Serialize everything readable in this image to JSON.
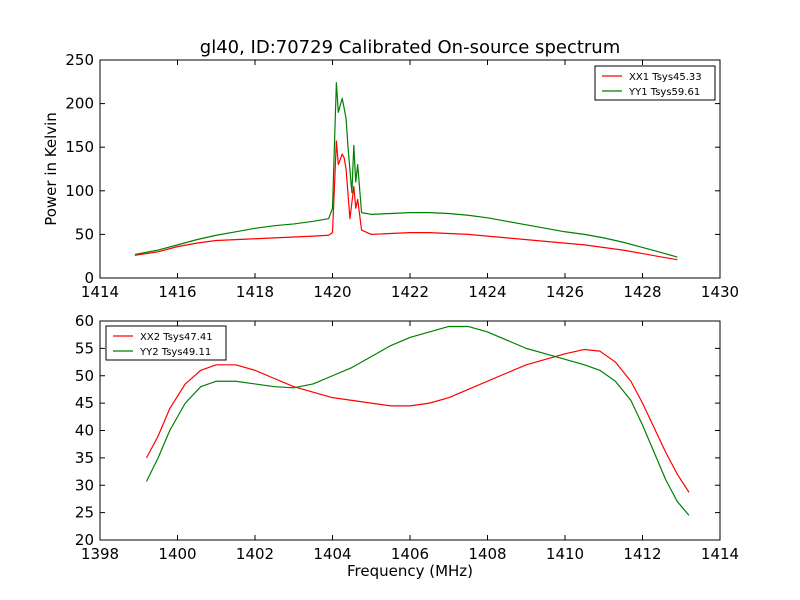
{
  "title": "gl40, ID:70729 Calibrated On-source spectrum",
  "colors": {
    "red": "#ff0000",
    "green": "#008000"
  },
  "chart_data": [
    {
      "type": "line",
      "title": "gl40, ID:70729 Calibrated On-source spectrum",
      "xlabel": "",
      "ylabel": "Power in Kelvin",
      "xlim": [
        1414,
        1430
      ],
      "ylim": [
        0,
        250
      ],
      "xticks": [
        1414,
        1416,
        1418,
        1420,
        1422,
        1424,
        1426,
        1428,
        1430
      ],
      "yticks": [
        0,
        50,
        100,
        150,
        200,
        250
      ],
      "legend": "top-right",
      "grid": false,
      "series": [
        {
          "name": "XX1 Tsys45.33",
          "color": "#ff0000",
          "points": [
            [
              1414.9,
              26
            ],
            [
              1415.5,
              30
            ],
            [
              1416,
              36
            ],
            [
              1416.5,
              40
            ],
            [
              1417,
              43
            ],
            [
              1417.5,
              44
            ],
            [
              1418,
              45
            ],
            [
              1418.5,
              46
            ],
            [
              1419,
              47
            ],
            [
              1419.5,
              48
            ],
            [
              1419.9,
              49
            ],
            [
              1420.0,
              52
            ],
            [
              1420.1,
              157
            ],
            [
              1420.15,
              130
            ],
            [
              1420.25,
              142
            ],
            [
              1420.3,
              138
            ],
            [
              1420.35,
              125
            ],
            [
              1420.45,
              68
            ],
            [
              1420.55,
              105
            ],
            [
              1420.6,
              80
            ],
            [
              1420.65,
              90
            ],
            [
              1420.75,
              55
            ],
            [
              1421,
              50
            ],
            [
              1421.5,
              51
            ],
            [
              1422,
              52
            ],
            [
              1422.5,
              52
            ],
            [
              1423,
              51
            ],
            [
              1423.5,
              50
            ],
            [
              1424,
              48
            ],
            [
              1424.5,
              46
            ],
            [
              1425,
              44
            ],
            [
              1425.5,
              42
            ],
            [
              1426,
              40
            ],
            [
              1426.5,
              38
            ],
            [
              1427,
              35
            ],
            [
              1427.5,
              32
            ],
            [
              1428,
              28
            ],
            [
              1428.5,
              24
            ],
            [
              1428.9,
              21
            ]
          ]
        },
        {
          "name": "YY1 Tsys59.61",
          "color": "#008000",
          "points": [
            [
              1414.9,
              27
            ],
            [
              1415.5,
              32
            ],
            [
              1416,
              38
            ],
            [
              1416.5,
              44
            ],
            [
              1417,
              49
            ],
            [
              1417.5,
              53
            ],
            [
              1418,
              57
            ],
            [
              1418.5,
              60
            ],
            [
              1419,
              62
            ],
            [
              1419.5,
              65
            ],
            [
              1419.9,
              68
            ],
            [
              1420.0,
              80
            ],
            [
              1420.1,
              224
            ],
            [
              1420.15,
              190
            ],
            [
              1420.25,
              206
            ],
            [
              1420.3,
              195
            ],
            [
              1420.35,
              183
            ],
            [
              1420.4,
              150
            ],
            [
              1420.5,
              98
            ],
            [
              1420.55,
              152
            ],
            [
              1420.6,
              110
            ],
            [
              1420.65,
              130
            ],
            [
              1420.75,
              75
            ],
            [
              1421,
              73
            ],
            [
              1421.5,
              74
            ],
            [
              1422,
              75
            ],
            [
              1422.5,
              75
            ],
            [
              1423,
              74
            ],
            [
              1423.5,
              72
            ],
            [
              1424,
              69
            ],
            [
              1424.5,
              65
            ],
            [
              1425,
              61
            ],
            [
              1425.5,
              57
            ],
            [
              1426,
              53
            ],
            [
              1426.5,
              50
            ],
            [
              1427,
              46
            ],
            [
              1427.5,
              41
            ],
            [
              1428,
              35
            ],
            [
              1428.5,
              29
            ],
            [
              1428.9,
              24
            ]
          ]
        }
      ]
    },
    {
      "type": "line",
      "title": "",
      "xlabel": "Frequency (MHz)",
      "ylabel": "",
      "xlim": [
        1398,
        1414
      ],
      "ylim": [
        20,
        60
      ],
      "xticks": [
        1398,
        1400,
        1402,
        1404,
        1406,
        1408,
        1410,
        1412,
        1414
      ],
      "yticks": [
        20,
        25,
        30,
        35,
        40,
        45,
        50,
        55,
        60
      ],
      "legend": "top-left",
      "grid": false,
      "series": [
        {
          "name": "XX2 Tsys47.41",
          "color": "#ff0000",
          "points": [
            [
              1399.2,
              35
            ],
            [
              1399.5,
              39
            ],
            [
              1399.8,
              44
            ],
            [
              1400.2,
              48.5
            ],
            [
              1400.6,
              51
            ],
            [
              1401,
              52
            ],
            [
              1401.5,
              52
            ],
            [
              1402,
              51
            ],
            [
              1402.5,
              49.5
            ],
            [
              1403,
              48
            ],
            [
              1403.5,
              47
            ],
            [
              1404,
              46
            ],
            [
              1404.5,
              45.5
            ],
            [
              1405,
              45
            ],
            [
              1405.5,
              44.5
            ],
            [
              1406,
              44.5
            ],
            [
              1406.5,
              45
            ],
            [
              1407,
              46
            ],
            [
              1407.5,
              47.5
            ],
            [
              1408,
              49
            ],
            [
              1408.5,
              50.5
            ],
            [
              1409,
              52
            ],
            [
              1409.5,
              53
            ],
            [
              1410,
              54
            ],
            [
              1410.5,
              54.8
            ],
            [
              1410.9,
              54.5
            ],
            [
              1411.3,
              52.5
            ],
            [
              1411.7,
              49
            ],
            [
              1412,
              45
            ],
            [
              1412.3,
              40.5
            ],
            [
              1412.6,
              36
            ],
            [
              1412.9,
              32
            ],
            [
              1413.2,
              28.7
            ]
          ]
        },
        {
          "name": "YY2 Tsys49.11",
          "color": "#008000",
          "points": [
            [
              1399.2,
              30.7
            ],
            [
              1399.5,
              35
            ],
            [
              1399.8,
              40
            ],
            [
              1400.2,
              45
            ],
            [
              1400.6,
              48
            ],
            [
              1401,
              49
            ],
            [
              1401.5,
              49
            ],
            [
              1402,
              48.5
            ],
            [
              1402.5,
              48
            ],
            [
              1403,
              47.8
            ],
            [
              1403.5,
              48.5
            ],
            [
              1404,
              50
            ],
            [
              1404.5,
              51.5
            ],
            [
              1405,
              53.5
            ],
            [
              1405.5,
              55.5
            ],
            [
              1406,
              57
            ],
            [
              1406.5,
              58
            ],
            [
              1407,
              59
            ],
            [
              1407.5,
              59
            ],
            [
              1408,
              58
            ],
            [
              1408.5,
              56.5
            ],
            [
              1409,
              55
            ],
            [
              1409.5,
              54
            ],
            [
              1410,
              53
            ],
            [
              1410.5,
              52
            ],
            [
              1410.9,
              51
            ],
            [
              1411.3,
              49
            ],
            [
              1411.7,
              45.5
            ],
            [
              1412,
              41
            ],
            [
              1412.3,
              36
            ],
            [
              1412.6,
              31
            ],
            [
              1412.9,
              27
            ],
            [
              1413.2,
              24.5
            ]
          ]
        }
      ]
    }
  ]
}
